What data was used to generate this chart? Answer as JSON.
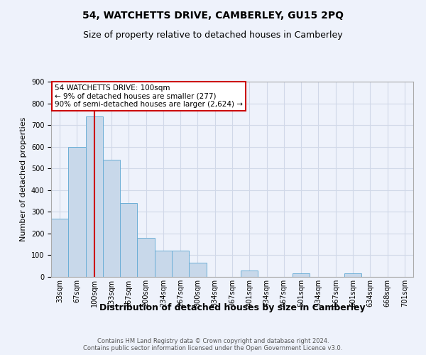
{
  "title": "54, WATCHETTS DRIVE, CAMBERLEY, GU15 2PQ",
  "subtitle": "Size of property relative to detached houses in Camberley",
  "xlabel": "Distribution of detached houses by size in Camberley",
  "ylabel": "Number of detached properties",
  "footer_line1": "Contains HM Land Registry data © Crown copyright and database right 2024.",
  "footer_line2": "Contains public sector information licensed under the Open Government Licence v3.0.",
  "annotation_line1": "54 WATCHETTS DRIVE: 100sqm",
  "annotation_line2": "← 9% of detached houses are smaller (277)",
  "annotation_line3": "90% of semi-detached houses are larger (2,624) →",
  "bar_color": "#c8d8ea",
  "bar_edge_color": "#6baed6",
  "grid_color": "#d0d8e8",
  "background_color": "#eef2fb",
  "annotation_box_color": "#ffffff",
  "annotation_box_edge": "#cc0000",
  "property_line_color": "#cc0000",
  "categories": [
    "33sqm",
    "67sqm",
    "100sqm",
    "133sqm",
    "167sqm",
    "200sqm",
    "234sqm",
    "267sqm",
    "300sqm",
    "334sqm",
    "367sqm",
    "401sqm",
    "434sqm",
    "467sqm",
    "501sqm",
    "534sqm",
    "567sqm",
    "601sqm",
    "634sqm",
    "668sqm",
    "701sqm"
  ],
  "values": [
    270,
    600,
    740,
    540,
    340,
    180,
    120,
    120,
    65,
    0,
    0,
    30,
    0,
    0,
    15,
    0,
    0,
    15,
    0,
    0,
    0
  ],
  "ylim": [
    0,
    900
  ],
  "yticks": [
    0,
    100,
    200,
    300,
    400,
    500,
    600,
    700,
    800,
    900
  ],
  "title_fontsize": 10,
  "subtitle_fontsize": 9,
  "ylabel_fontsize": 8,
  "xlabel_fontsize": 9,
  "tick_fontsize": 7,
  "footer_fontsize": 6,
  "annotation_fontsize": 7.5
}
